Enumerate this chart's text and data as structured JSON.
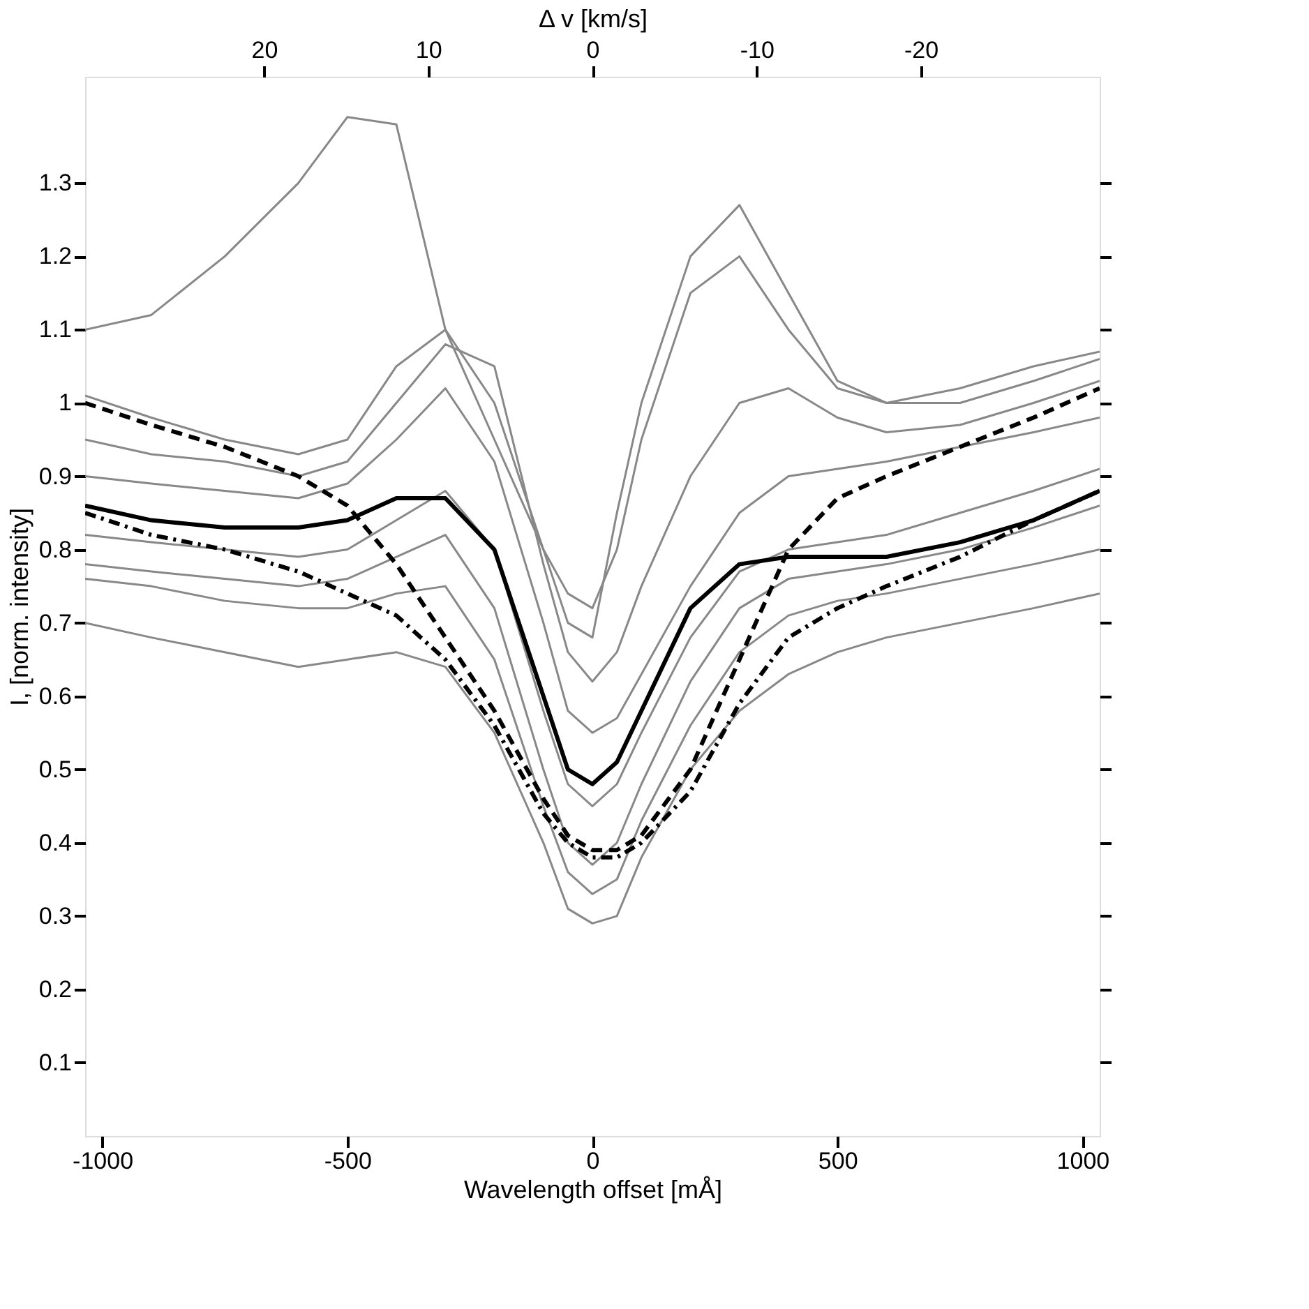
{
  "chart_data": {
    "type": "line",
    "xlabel": "Wavelength offset [mÅ]",
    "ylabel": "I, [norm. intensity]",
    "x2label": "Δ v [km/s]",
    "xlim": [
      -1035,
      1035
    ],
    "xticks": [
      -1000,
      -500,
      0,
      500,
      1000
    ],
    "x2lim": [
      30.9,
      -30.9
    ],
    "x2ticks": [
      20,
      10,
      0,
      -10,
      -20
    ],
    "ylim": [
      0,
      1.445
    ],
    "yticks": [
      0.1,
      0.2,
      0.3,
      0.4,
      0.5,
      0.6,
      0.7,
      0.8,
      0.9,
      1,
      1.1,
      1.2,
      1.3
    ],
    "x": [
      -1035,
      -900,
      -750,
      -600,
      -500,
      -400,
      -300,
      -200,
      -100,
      -50,
      0,
      50,
      100,
      200,
      300,
      400,
      500,
      600,
      750,
      900,
      1035
    ],
    "grid": false,
    "marker": "none",
    "series": [
      {
        "color": "#888888",
        "line_style": "solid",
        "values": [
          1.1,
          1.12,
          1.2,
          1.3,
          1.39,
          1.38,
          1.1,
          0.95,
          0.8,
          0.74,
          0.72,
          0.8,
          0.95,
          1.15,
          1.2,
          1.1,
          1.02,
          1.0,
          1.02,
          1.05,
          1.07
        ]
      },
      {
        "color": "#888888",
        "line_style": "solid",
        "values": [
          1.01,
          0.98,
          0.95,
          0.93,
          0.95,
          1.05,
          1.1,
          1.0,
          0.8,
          0.7,
          0.68,
          0.85,
          1.0,
          1.2,
          1.27,
          1.15,
          1.03,
          1.0,
          1.0,
          1.03,
          1.06
        ]
      },
      {
        "color": "#888888",
        "line_style": "solid",
        "values": [
          0.95,
          0.93,
          0.92,
          0.9,
          0.92,
          1.0,
          1.08,
          1.05,
          0.78,
          0.66,
          0.62,
          0.66,
          0.75,
          0.9,
          1.0,
          1.02,
          0.98,
          0.96,
          0.97,
          1.0,
          1.03
        ]
      },
      {
        "color": "#888888",
        "line_style": "solid",
        "values": [
          0.9,
          0.89,
          0.88,
          0.87,
          0.89,
          0.95,
          1.02,
          0.92,
          0.7,
          0.58,
          0.55,
          0.57,
          0.63,
          0.75,
          0.85,
          0.9,
          0.91,
          0.92,
          0.94,
          0.96,
          0.98
        ]
      },
      {
        "color": "#888888",
        "line_style": "solid",
        "values": [
          0.82,
          0.81,
          0.8,
          0.79,
          0.8,
          0.84,
          0.88,
          0.8,
          0.58,
          0.48,
          0.45,
          0.48,
          0.55,
          0.68,
          0.77,
          0.8,
          0.81,
          0.82,
          0.85,
          0.88,
          0.91
        ]
      },
      {
        "color": "#888888",
        "line_style": "solid",
        "values": [
          0.78,
          0.77,
          0.76,
          0.75,
          0.76,
          0.79,
          0.82,
          0.72,
          0.5,
          0.4,
          0.37,
          0.4,
          0.48,
          0.62,
          0.72,
          0.76,
          0.77,
          0.78,
          0.8,
          0.83,
          0.86
        ]
      },
      {
        "color": "#888888",
        "line_style": "solid",
        "values": [
          0.76,
          0.75,
          0.73,
          0.72,
          0.72,
          0.74,
          0.75,
          0.65,
          0.45,
          0.36,
          0.33,
          0.35,
          0.43,
          0.56,
          0.66,
          0.71,
          0.73,
          0.74,
          0.76,
          0.78,
          0.8
        ]
      },
      {
        "color": "#888888",
        "line_style": "solid",
        "values": [
          0.7,
          0.68,
          0.66,
          0.64,
          0.65,
          0.66,
          0.64,
          0.55,
          0.4,
          0.31,
          0.29,
          0.3,
          0.38,
          0.5,
          0.58,
          0.63,
          0.66,
          0.68,
          0.7,
          0.72,
          0.74
        ]
      },
      {
        "color": "#000000",
        "line_style": "solid",
        "values": [
          0.86,
          0.84,
          0.83,
          0.83,
          0.84,
          0.87,
          0.87,
          0.8,
          0.6,
          0.5,
          0.48,
          0.51,
          0.58,
          0.72,
          0.78,
          0.79,
          0.79,
          0.79,
          0.81,
          0.84,
          0.88
        ]
      },
      {
        "color": "#000000",
        "line_style": "dashed",
        "values": [
          1.0,
          0.97,
          0.94,
          0.9,
          0.86,
          0.78,
          0.68,
          0.58,
          0.46,
          0.41,
          0.39,
          0.39,
          0.41,
          0.5,
          0.65,
          0.8,
          0.87,
          0.9,
          0.94,
          0.98,
          1.02
        ]
      },
      {
        "color": "#000000",
        "line_style": "dashdot",
        "values": [
          0.85,
          0.82,
          0.8,
          0.77,
          0.74,
          0.71,
          0.65,
          0.56,
          0.44,
          0.4,
          0.38,
          0.38,
          0.4,
          0.47,
          0.59,
          0.68,
          0.72,
          0.75,
          0.79,
          0.84,
          0.88
        ]
      }
    ]
  }
}
